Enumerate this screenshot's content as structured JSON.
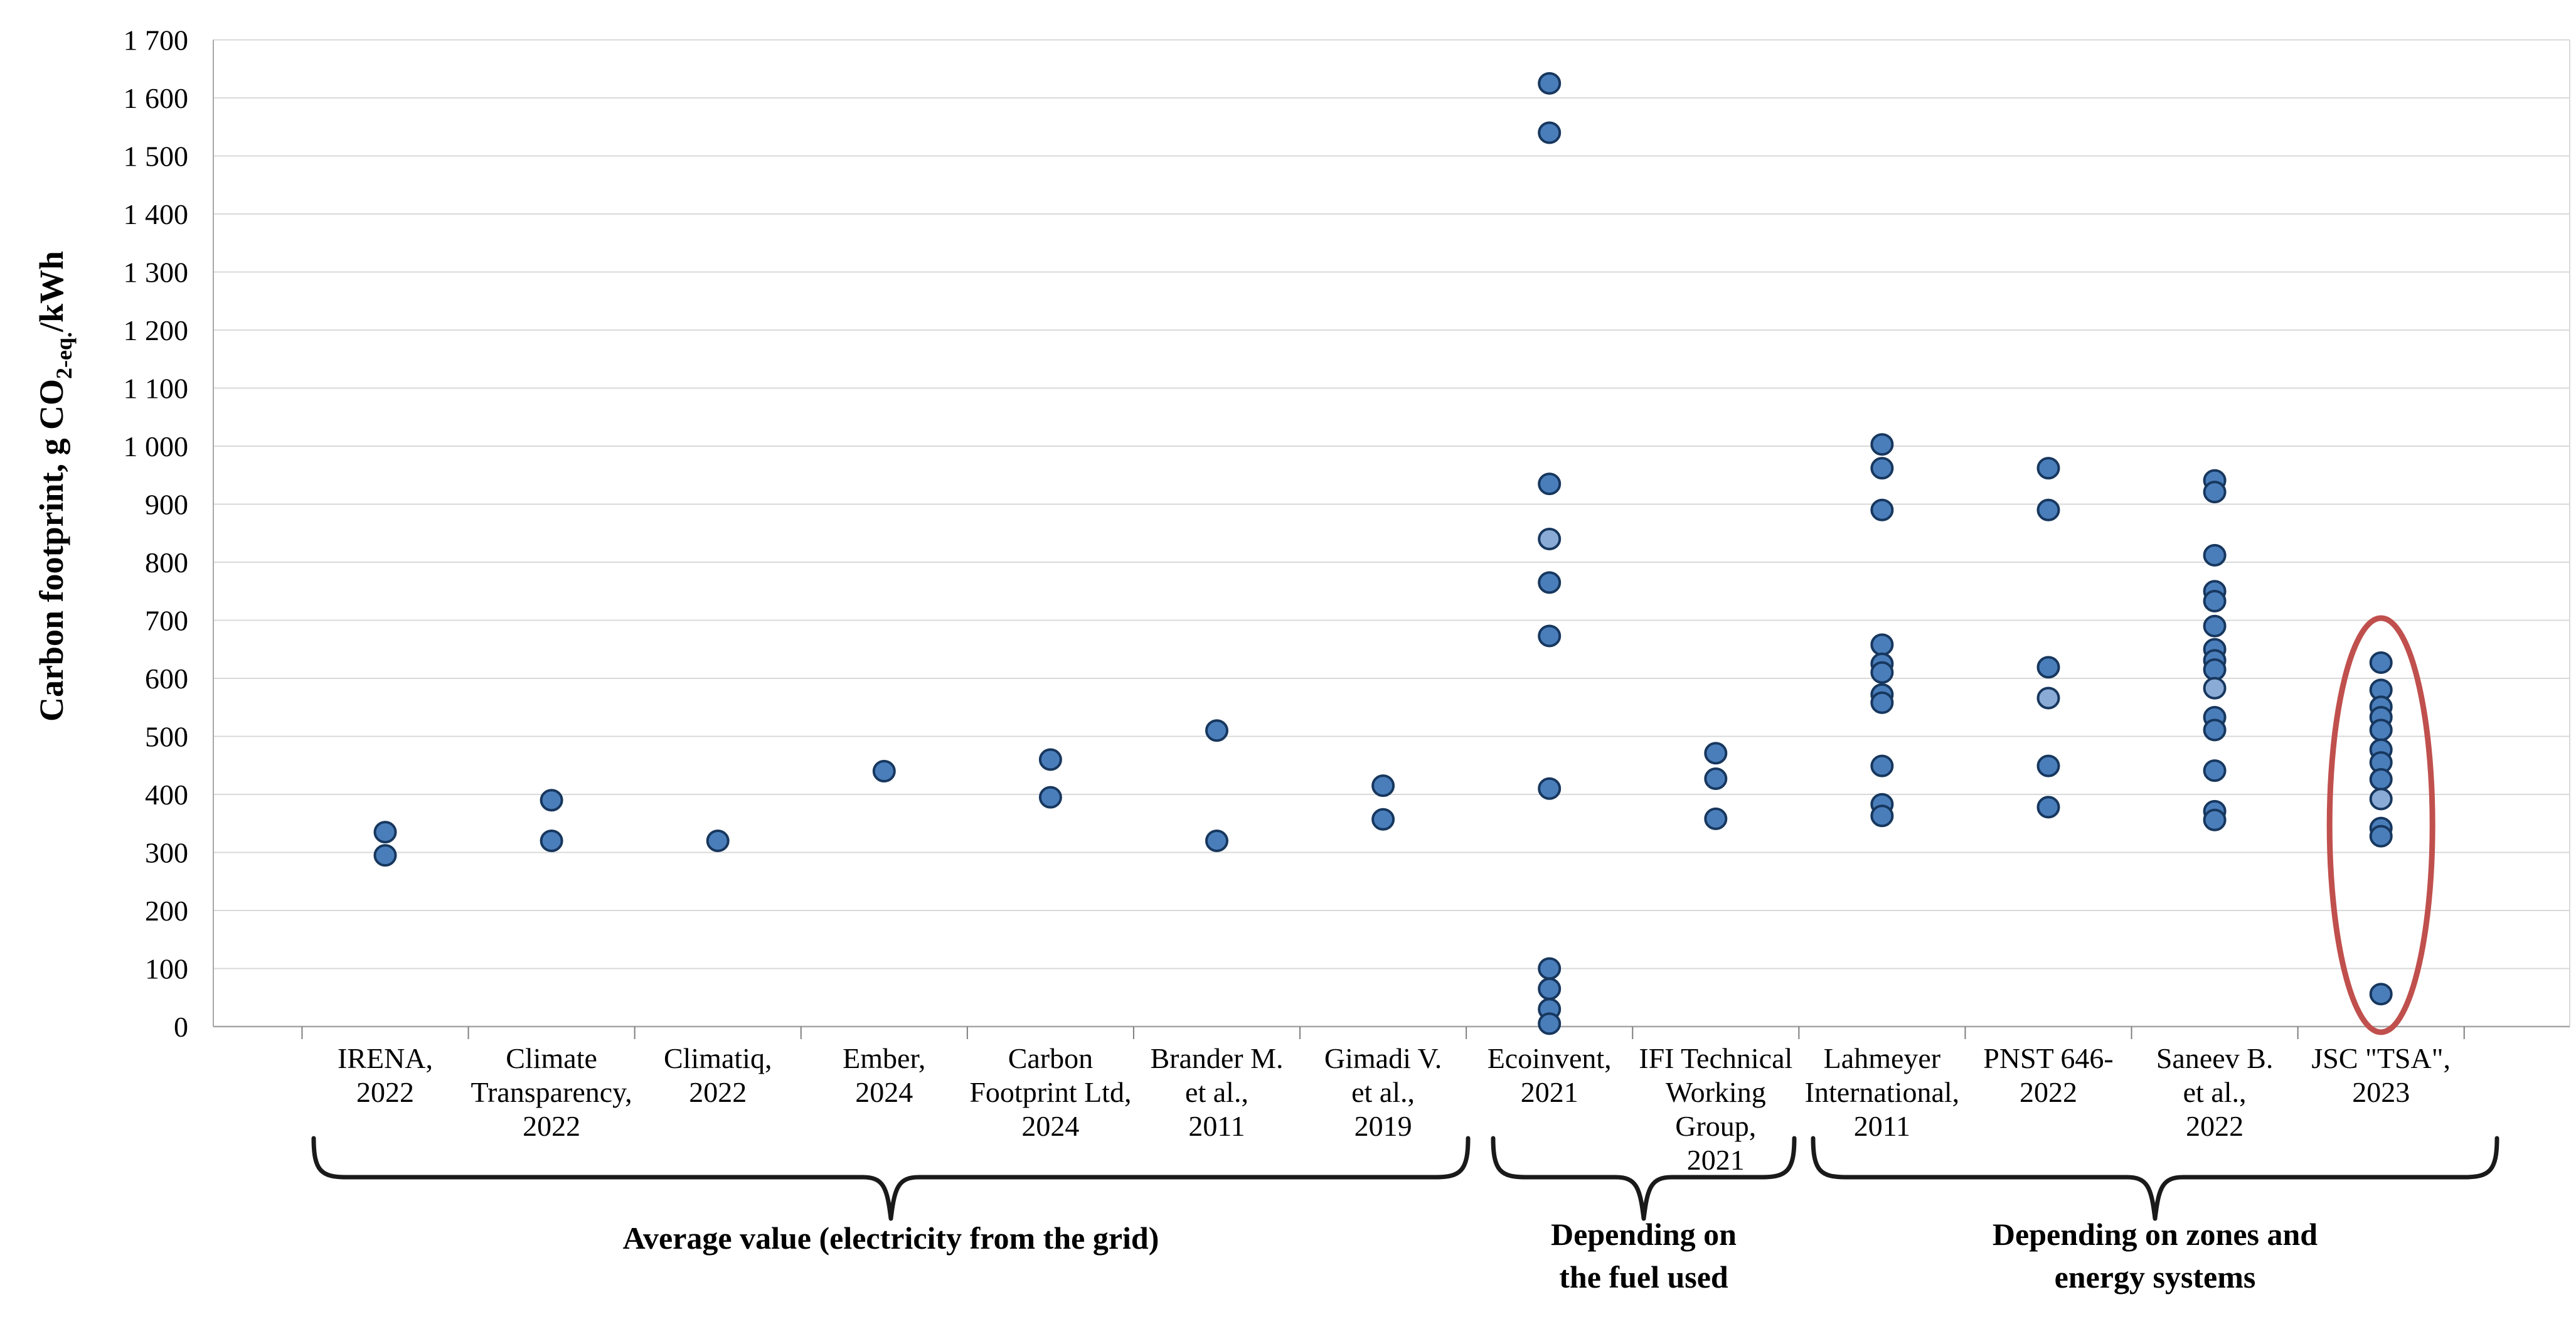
{
  "page": {
    "background": "#ffffff"
  },
  "colors": {
    "marker_fill": "#4a7ebb",
    "marker_fill_light": "#8aabd6",
    "marker_stroke": "#17375e",
    "gridline": "#d9d9d9",
    "axis_line": "#a6a6a6",
    "tick": "#7f7f7f",
    "brace": "#1a1a1a",
    "annotation": "#c0504d",
    "text": "#000000"
  },
  "chart_data": {
    "type": "scatter",
    "title": "",
    "xlabel": "",
    "ylabel": "Carbon footprint, g CO2-eq./kWh",
    "ylabel_rich": [
      {
        "text": "Carbon footprint, g CO"
      },
      {
        "text": "2-eq.",
        "sub": true
      },
      {
        "text": "/kWh"
      }
    ],
    "ylim": [
      0,
      1700
    ],
    "ytick_step": 100,
    "ytick_labels": [
      "0",
      "100",
      "200",
      "300",
      "400",
      "500",
      "600",
      "700",
      "800",
      "900",
      "1 000",
      "1 100",
      "1 200",
      "1 300",
      "1 400",
      "1 500",
      "1 600",
      "1 700"
    ],
    "grid": true,
    "legend": "none",
    "marker": "circle",
    "categories": [
      {
        "label_lines": [
          "IRENA,",
          "2022"
        ],
        "points": [
          {
            "v": 335
          },
          {
            "v": 295
          }
        ]
      },
      {
        "label_lines": [
          "Climate",
          "Transparency,",
          "2022"
        ],
        "points": [
          {
            "v": 390
          },
          {
            "v": 320
          }
        ]
      },
      {
        "label_lines": [
          "Climatiq,",
          "2022"
        ],
        "points": [
          {
            "v": 320
          }
        ]
      },
      {
        "label_lines": [
          "Ember,",
          "2024"
        ],
        "points": [
          {
            "v": 440
          }
        ]
      },
      {
        "label_lines": [
          "Carbon",
          "Footprint Ltd,",
          "2024"
        ],
        "points": [
          {
            "v": 460
          },
          {
            "v": 395
          }
        ]
      },
      {
        "label_lines": [
          "Brander M.",
          "et al.,",
          "2011"
        ],
        "points": [
          {
            "v": 510
          },
          {
            "v": 320
          }
        ]
      },
      {
        "label_lines": [
          "Gimadi V.",
          "et al.,",
          "2019"
        ],
        "points": [
          {
            "v": 415
          },
          {
            "v": 357
          }
        ]
      },
      {
        "label_lines": [
          "Ecoinvent,",
          "2021"
        ],
        "points": [
          {
            "v": 1625
          },
          {
            "v": 1540
          },
          {
            "v": 935
          },
          {
            "v": 840,
            "light": true
          },
          {
            "v": 765
          },
          {
            "v": 673
          },
          {
            "v": 410
          },
          {
            "v": 100
          },
          {
            "v": 65
          },
          {
            "v": 30
          },
          {
            "v": 5
          }
        ]
      },
      {
        "label_lines": [
          "IFI Technical",
          "Working",
          "Group,",
          "2021"
        ],
        "points": [
          {
            "v": 471
          },
          {
            "v": 427
          },
          {
            "v": 358
          }
        ]
      },
      {
        "label_lines": [
          "Lahmeyer",
          "International,",
          "2011"
        ],
        "points": [
          {
            "v": 1003
          },
          {
            "v": 962
          },
          {
            "v": 890
          },
          {
            "v": 658
          },
          {
            "v": 625
          },
          {
            "v": 610
          },
          {
            "v": 572
          },
          {
            "v": 558
          },
          {
            "v": 449
          },
          {
            "v": 383
          },
          {
            "v": 363
          }
        ]
      },
      {
        "label_lines": [
          "PNST 646-",
          "2022"
        ],
        "points": [
          {
            "v": 962
          },
          {
            "v": 890
          },
          {
            "v": 619
          },
          {
            "v": 566,
            "light": true
          },
          {
            "v": 449
          },
          {
            "v": 378
          }
        ]
      },
      {
        "label_lines": [
          "Saneev B.",
          "et al.,",
          "2022"
        ],
        "points": [
          {
            "v": 941
          },
          {
            "v": 921
          },
          {
            "v": 812
          },
          {
            "v": 750
          },
          {
            "v": 733
          },
          {
            "v": 690
          },
          {
            "v": 650
          },
          {
            "v": 631
          },
          {
            "v": 615
          },
          {
            "v": 583,
            "light": true
          },
          {
            "v": 533
          },
          {
            "v": 511
          },
          {
            "v": 441
          },
          {
            "v": 371
          },
          {
            "v": 356
          }
        ]
      },
      {
        "label_lines": [
          "JSC \"TSA\",",
          "2023"
        ],
        "points": [
          {
            "v": 627
          },
          {
            "v": 580
          },
          {
            "v": 551
          },
          {
            "v": 533
          },
          {
            "v": 511
          },
          {
            "v": 477
          },
          {
            "v": 455
          },
          {
            "v": 426
          },
          {
            "v": 392,
            "light": true
          },
          {
            "v": 342
          },
          {
            "v": 328
          },
          {
            "v": 56
          }
        ]
      }
    ],
    "groups": [
      {
        "label_lines": [
          "Average value (electricity from the grid)"
        ],
        "from": 0,
        "to": 6
      },
      {
        "label_lines": [
          "Depending on",
          "the fuel used"
        ],
        "from": 7,
        "to": 8
      },
      {
        "label_lines": [
          "Depending on zones and",
          "energy systems"
        ],
        "from": 9,
        "to": 12
      }
    ],
    "annotation": {
      "shape": "ellipse",
      "around_category": 12,
      "color": "#c0504d"
    }
  }
}
